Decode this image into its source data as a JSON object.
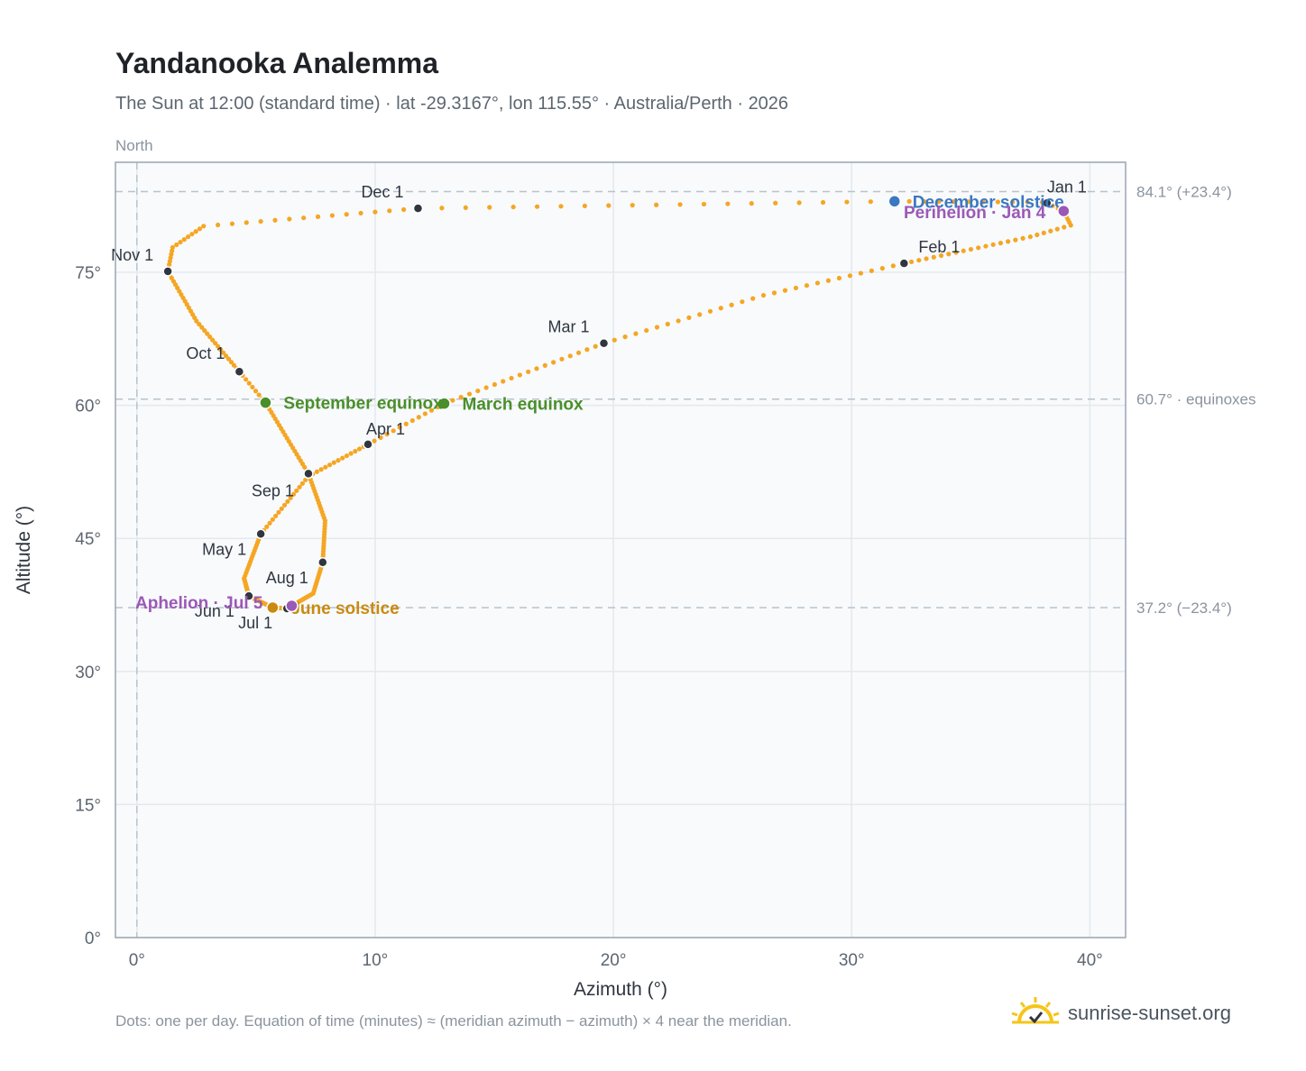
{
  "title": "Yandanooka Analemma",
  "subtitle": "The Sun at 12:00 (standard time) · lat -29.3167°, lon 115.55° · Australia/Perth · 2026",
  "footnote": "Dots: one per day. Equation of time (minutes) ≈ (meridian azimuth − azimuth) × 4 near the meridian.",
  "brand": {
    "name": "sunrise-sunset.org",
    "icon": "sun-logo-icon"
  },
  "colors": {
    "path": "#f5a623",
    "month_dot": "#2f3640",
    "equinox": "#4a8f2b",
    "june_solstice": "#c98a10",
    "december_solstice": "#3a78c2",
    "aphelion_perihelion": "#9b59b6",
    "reference": "#b7c3cc",
    "plot_bg": "#f8fafc",
    "grid": "#e3e9ee"
  },
  "chart_data": {
    "type": "scatter",
    "title": "Yandanooka Analemma",
    "xlabel": "Azimuth (°)",
    "ylabel": "Altitude (°)",
    "direction_label": "North",
    "xlim": [
      -0.9,
      41.5
    ],
    "ylim": [
      0,
      87.4
    ],
    "xticks": [
      0,
      10,
      20,
      30,
      40
    ],
    "xtick_labels": [
      "0°",
      "10°",
      "20°",
      "30°",
      "40°"
    ],
    "yticks": [
      0,
      15,
      30,
      45,
      60,
      75
    ],
    "ytick_labels": [
      "0°",
      "15°",
      "30°",
      "45°",
      "60°",
      "75°"
    ],
    "grid": true,
    "reference_lines": [
      {
        "axis": "y",
        "value": 84.1,
        "label": "84.1° (+23.4°)"
      },
      {
        "axis": "y",
        "value": 60.7,
        "label": "60.7° · equinoxes"
      },
      {
        "axis": "y",
        "value": 37.2,
        "label": "37.2° (−23.4°)"
      },
      {
        "axis": "x",
        "value": 0,
        "label": ""
      }
    ],
    "path_keypoints": [
      {
        "day": 1,
        "x": 38.2,
        "y": 82.8
      },
      {
        "day": 4,
        "x": 38.9,
        "y": 81.9
      },
      {
        "day": 9,
        "x": 39.2,
        "y": 80.3
      },
      {
        "day": 15,
        "x": 37.5,
        "y": 79.0
      },
      {
        "day": 32,
        "x": 32.2,
        "y": 76.0
      },
      {
        "day": 45,
        "x": 26.3,
        "y": 72.4
      },
      {
        "day": 60,
        "x": 19.6,
        "y": 67.0
      },
      {
        "day": 79,
        "x": 12.9,
        "y": 60.2
      },
      {
        "day": 91,
        "x": 9.7,
        "y": 55.6
      },
      {
        "day": 105,
        "x": 7.2,
        "y": 52.0
      },
      {
        "day": 121,
        "x": 5.2,
        "y": 45.5
      },
      {
        "day": 137,
        "x": 4.5,
        "y": 40.5
      },
      {
        "day": 152,
        "x": 4.7,
        "y": 38.5
      },
      {
        "day": 172,
        "x": 5.7,
        "y": 37.2
      },
      {
        "day": 182,
        "x": 6.3,
        "y": 37.1
      },
      {
        "day": 186,
        "x": 6.5,
        "y": 37.4
      },
      {
        "day": 200,
        "x": 7.4,
        "y": 38.8
      },
      {
        "day": 213,
        "x": 7.8,
        "y": 42.3
      },
      {
        "day": 228,
        "x": 7.9,
        "y": 47.0
      },
      {
        "day": 244,
        "x": 7.2,
        "y": 52.3
      },
      {
        "day": 266,
        "x": 5.4,
        "y": 60.3
      },
      {
        "day": 274,
        "x": 4.3,
        "y": 63.8
      },
      {
        "day": 290,
        "x": 2.5,
        "y": 69.5
      },
      {
        "day": 305,
        "x": 1.3,
        "y": 75.1
      },
      {
        "day": 312,
        "x": 1.5,
        "y": 77.8
      },
      {
        "day": 320,
        "x": 2.8,
        "y": 80.2
      },
      {
        "day": 335,
        "x": 11.8,
        "y": 82.2
      },
      {
        "day": 355,
        "x": 31.8,
        "y": 83.0
      },
      {
        "day": 365,
        "x": 38.0,
        "y": 82.9
      }
    ],
    "month_markers": [
      {
        "label": "Jan 1",
        "x": 38.2,
        "y": 82.8
      },
      {
        "label": "Feb 1",
        "x": 32.2,
        "y": 76.0
      },
      {
        "label": "Mar 1",
        "x": 19.6,
        "y": 67.0
      },
      {
        "label": "Apr 1",
        "x": 9.7,
        "y": 55.6
      },
      {
        "label": "May 1",
        "x": 5.2,
        "y": 45.5
      },
      {
        "label": "Jun 1",
        "x": 4.7,
        "y": 38.5
      },
      {
        "label": "Jul 1",
        "x": 6.3,
        "y": 37.1
      },
      {
        "label": "Aug 1",
        "x": 7.8,
        "y": 42.3
      },
      {
        "label": "Sep 1",
        "x": 7.2,
        "y": 52.3
      },
      {
        "label": "Oct 1",
        "x": 4.3,
        "y": 63.8
      },
      {
        "label": "Nov 1",
        "x": 1.3,
        "y": 75.1
      },
      {
        "label": "Dec 1",
        "x": 11.8,
        "y": 82.2
      }
    ],
    "events": [
      {
        "label": "March equinox",
        "x": 12.9,
        "y": 60.2,
        "kind": "equinox"
      },
      {
        "label": "September equinox",
        "x": 5.4,
        "y": 60.3,
        "kind": "equinox"
      },
      {
        "label": "June solstice",
        "x": 5.7,
        "y": 37.2,
        "kind": "june_solstice"
      },
      {
        "label": "December solstice",
        "x": 31.8,
        "y": 83.0,
        "kind": "december_solstice"
      },
      {
        "label": "Perihelion · Jan 4",
        "x": 38.9,
        "y": 81.9,
        "kind": "aphelion_perihelion"
      },
      {
        "label": "Aphelion · Jul 5",
        "x": 6.5,
        "y": 37.4,
        "kind": "aphelion_perihelion"
      }
    ]
  }
}
